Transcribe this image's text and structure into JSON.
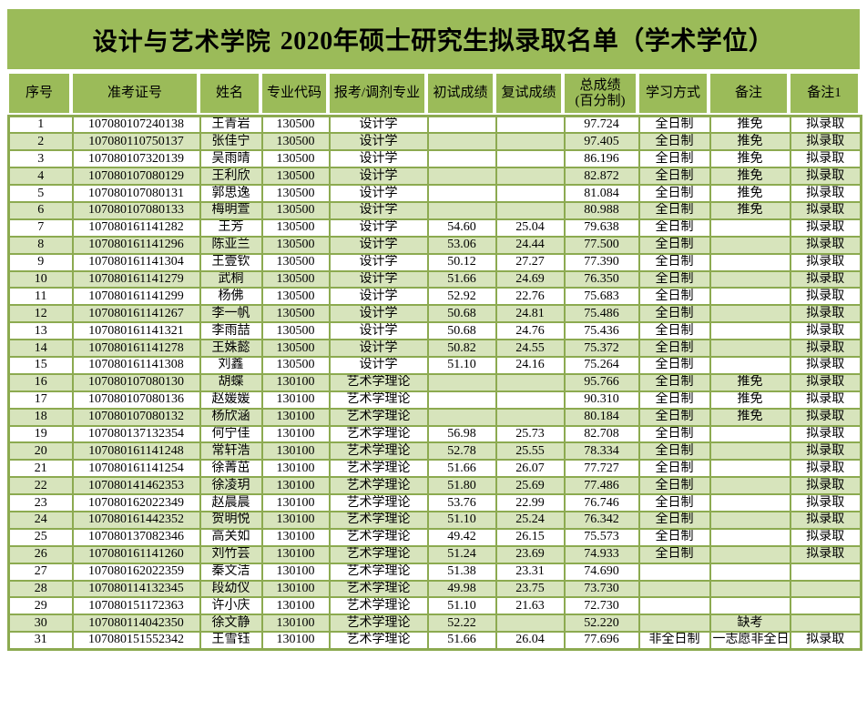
{
  "title": {
    "school": "设计与艺术学院",
    "main": "2020年硕士研究生拟录取名单（学术学位）"
  },
  "colors": {
    "header_green": "#9BBB59",
    "stripe_green": "#D7E4BC",
    "border_green": "#8CAA50"
  },
  "table": {
    "headers": [
      "序号",
      "准考证号",
      "姓名",
      "专业代码",
      "报考/调剂专业",
      "初试成绩",
      "复试成绩",
      "总成绩\n(百分制)",
      "学习方式",
      "备注",
      "备注1"
    ],
    "header_keys": [
      "serial",
      "exam-id",
      "name",
      "major-code",
      "major",
      "initial-score",
      "retest-score",
      "total-score",
      "study-mode",
      "remark",
      "remark1"
    ],
    "rows": [
      [
        "1",
        "107080107240138",
        "王青岩",
        "130500",
        "设计学",
        "",
        "",
        "97.724",
        "全日制",
        "推免",
        "拟录取"
      ],
      [
        "2",
        "107080110750137",
        "张佳宁",
        "130500",
        "设计学",
        "",
        "",
        "97.405",
        "全日制",
        "推免",
        "拟录取"
      ],
      [
        "3",
        "107080107320139",
        "吴雨晴",
        "130500",
        "设计学",
        "",
        "",
        "86.196",
        "全日制",
        "推免",
        "拟录取"
      ],
      [
        "4",
        "107080107080129",
        "王利欣",
        "130500",
        "设计学",
        "",
        "",
        "82.872",
        "全日制",
        "推免",
        "拟录取"
      ],
      [
        "5",
        "107080107080131",
        "郭思逸",
        "130500",
        "设计学",
        "",
        "",
        "81.084",
        "全日制",
        "推免",
        "拟录取"
      ],
      [
        "6",
        "107080107080133",
        "梅明萱",
        "130500",
        "设计学",
        "",
        "",
        "80.988",
        "全日制",
        "推免",
        "拟录取"
      ],
      [
        "7",
        "107080161141282",
        "王芳",
        "130500",
        "设计学",
        "54.60",
        "25.04",
        "79.638",
        "全日制",
        "",
        "拟录取"
      ],
      [
        "8",
        "107080161141296",
        "陈亚兰",
        "130500",
        "设计学",
        "53.06",
        "24.44",
        "77.500",
        "全日制",
        "",
        "拟录取"
      ],
      [
        "9",
        "107080161141304",
        "王壹钦",
        "130500",
        "设计学",
        "50.12",
        "27.27",
        "77.390",
        "全日制",
        "",
        "拟录取"
      ],
      [
        "10",
        "107080161141279",
        "武桐",
        "130500",
        "设计学",
        "51.66",
        "24.69",
        "76.350",
        "全日制",
        "",
        "拟录取"
      ],
      [
        "11",
        "107080161141299",
        "杨佛",
        "130500",
        "设计学",
        "52.92",
        "22.76",
        "75.683",
        "全日制",
        "",
        "拟录取"
      ],
      [
        "12",
        "107080161141267",
        "李一帆",
        "130500",
        "设计学",
        "50.68",
        "24.81",
        "75.486",
        "全日制",
        "",
        "拟录取"
      ],
      [
        "13",
        "107080161141321",
        "李雨喆",
        "130500",
        "设计学",
        "50.68",
        "24.76",
        "75.436",
        "全日制",
        "",
        "拟录取"
      ],
      [
        "14",
        "107080161141278",
        "王姝懿",
        "130500",
        "设计学",
        "50.82",
        "24.55",
        "75.372",
        "全日制",
        "",
        "拟录取"
      ],
      [
        "15",
        "107080161141308",
        "刘鑫",
        "130500",
        "设计学",
        "51.10",
        "24.16",
        "75.264",
        "全日制",
        "",
        "拟录取"
      ],
      [
        "16",
        "107080107080130",
        "胡蝶",
        "130100",
        "艺术学理论",
        "",
        "",
        "95.766",
        "全日制",
        "推免",
        "拟录取"
      ],
      [
        "17",
        "107080107080136",
        "赵媛媛",
        "130100",
        "艺术学理论",
        "",
        "",
        "90.310",
        "全日制",
        "推免",
        "拟录取"
      ],
      [
        "18",
        "107080107080132",
        "杨欣涵",
        "130100",
        "艺术学理论",
        "",
        "",
        "80.184",
        "全日制",
        "推免",
        "拟录取"
      ],
      [
        "19",
        "107080137132354",
        "何宁佳",
        "130100",
        "艺术学理论",
        "56.98",
        "25.73",
        "82.708",
        "全日制",
        "",
        "拟录取"
      ],
      [
        "20",
        "107080161141248",
        "常轩浩",
        "130100",
        "艺术学理论",
        "52.78",
        "25.55",
        "78.334",
        "全日制",
        "",
        "拟录取"
      ],
      [
        "21",
        "107080161141254",
        "徐菁茁",
        "130100",
        "艺术学理论",
        "51.66",
        "26.07",
        "77.727",
        "全日制",
        "",
        "拟录取"
      ],
      [
        "22",
        "107080141462353",
        "徐凌玥",
        "130100",
        "艺术学理论",
        "51.80",
        "25.69",
        "77.486",
        "全日制",
        "",
        "拟录取"
      ],
      [
        "23",
        "107080162022349",
        "赵晨晨",
        "130100",
        "艺术学理论",
        "53.76",
        "22.99",
        "76.746",
        "全日制",
        "",
        "拟录取"
      ],
      [
        "24",
        "107080161442352",
        "贺明悦",
        "130100",
        "艺术学理论",
        "51.10",
        "25.24",
        "76.342",
        "全日制",
        "",
        "拟录取"
      ],
      [
        "25",
        "107080137082346",
        "高关如",
        "130100",
        "艺术学理论",
        "49.42",
        "26.15",
        "75.573",
        "全日制",
        "",
        "拟录取"
      ],
      [
        "26",
        "107080161141260",
        "刘竹芸",
        "130100",
        "艺术学理论",
        "51.24",
        "23.69",
        "74.933",
        "全日制",
        "",
        "拟录取"
      ],
      [
        "27",
        "107080162022359",
        "秦文洁",
        "130100",
        "艺术学理论",
        "51.38",
        "23.31",
        "74.690",
        "",
        "",
        ""
      ],
      [
        "28",
        "107080114132345",
        "段幼仪",
        "130100",
        "艺术学理论",
        "49.98",
        "23.75",
        "73.730",
        "",
        "",
        ""
      ],
      [
        "29",
        "107080151172363",
        "许小庆",
        "130100",
        "艺术学理论",
        "51.10",
        "21.63",
        "72.730",
        "",
        "",
        ""
      ],
      [
        "30",
        "107080114042350",
        "徐文静",
        "130100",
        "艺术学理论",
        "52.22",
        "",
        "52.220",
        "",
        "缺考",
        ""
      ],
      [
        "31",
        "107080151552342",
        "王雪钰",
        "130100",
        "艺术学理论",
        "51.66",
        "26.04",
        "77.696",
        "非全日制",
        "一志愿非全日制",
        "拟录取"
      ]
    ]
  }
}
